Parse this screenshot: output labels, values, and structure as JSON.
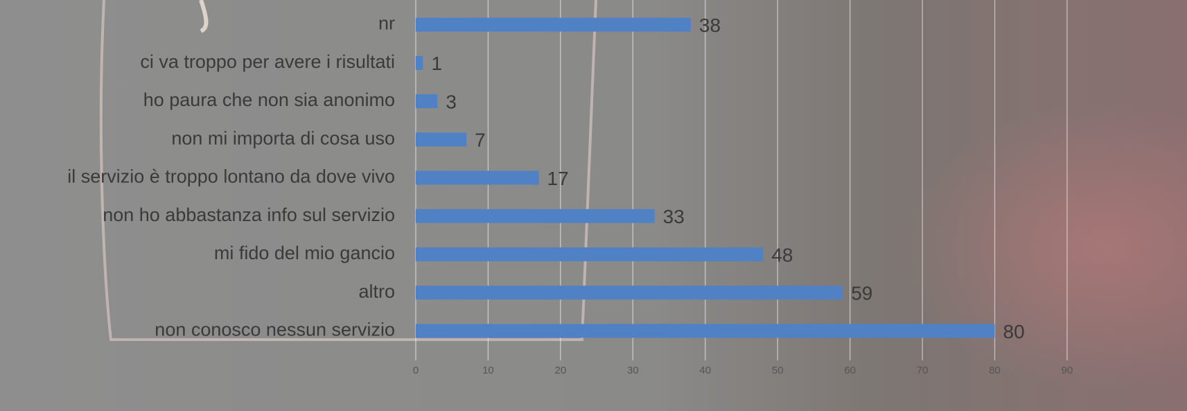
{
  "chart_data": {
    "type": "bar",
    "orientation": "horizontal",
    "categories": [
      "nr",
      "ci va troppo per avere i risultati",
      "ho paura che non sia anonimo",
      "non mi importa di cosa uso",
      "il servizio è troppo lontano da dove vivo",
      "non ho abbastanza info sul servizio",
      "mi fido del mio gancio",
      "altro",
      "non conosco nessun servizio"
    ],
    "values": [
      38,
      1,
      3,
      7,
      17,
      33,
      48,
      59,
      80
    ],
    "color": "#4f81c4",
    "xlim": [
      0,
      90
    ],
    "xticks": [
      0,
      10,
      20,
      30,
      40,
      50,
      60,
      70,
      80,
      90
    ],
    "grid": true
  }
}
